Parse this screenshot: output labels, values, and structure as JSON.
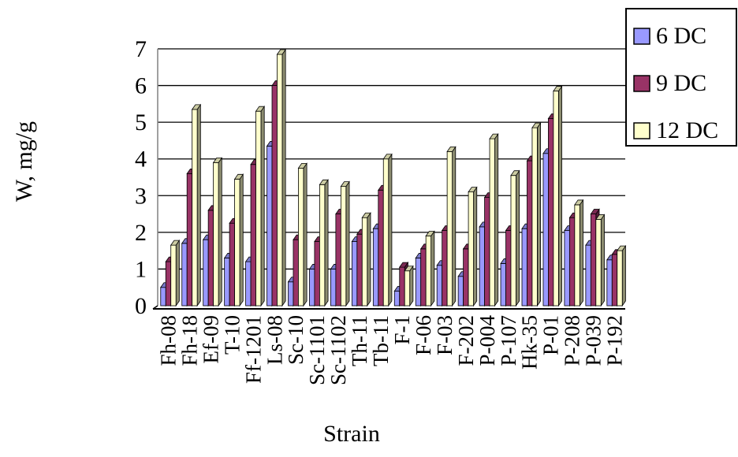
{
  "chart_data": {
    "type": "bar",
    "title": "",
    "xlabel": "Strain",
    "ylabel": "W, mg/g",
    "ylim": [
      0,
      7
    ],
    "yticks": [
      0,
      1,
      2,
      3,
      4,
      5,
      6,
      7
    ],
    "grid": true,
    "legend_position": "top-right",
    "categories": [
      "Fh-08",
      "Fh-18",
      "Ef-09",
      "T-10",
      "Ff-1201",
      "Ls-08",
      "Sc-10",
      "Sc-1101",
      "Sc-1102",
      "Th-11",
      "Tb-11",
      "F-1",
      "F-06",
      "F-03",
      "F-202",
      "P-004",
      "P-107",
      "Hk-35",
      "P-01",
      "P-208",
      "P-039",
      "P-192"
    ],
    "series": [
      {
        "name": "6 DC",
        "color": "#9999ff",
        "values": [
          0.5,
          1.7,
          1.8,
          1.3,
          1.2,
          4.35,
          0.65,
          1.0,
          1.0,
          1.75,
          2.1,
          0.4,
          1.3,
          1.1,
          0.8,
          2.15,
          1.15,
          2.1,
          4.15,
          2.05,
          1.65,
          1.25
        ]
      },
      {
        "name": "9 DC",
        "color": "#993366",
        "values": [
          1.2,
          3.6,
          2.6,
          2.25,
          3.85,
          6.0,
          1.8,
          1.75,
          2.5,
          1.95,
          3.15,
          1.05,
          1.55,
          2.05,
          1.55,
          2.95,
          2.05,
          3.95,
          5.1,
          2.4,
          2.5,
          1.4
        ]
      },
      {
        "name": "12 DC",
        "color": "#ffffcc",
        "values": [
          1.65,
          5.35,
          3.9,
          3.45,
          5.3,
          6.85,
          3.75,
          3.3,
          3.25,
          2.4,
          4.0,
          0.95,
          1.9,
          4.2,
          3.1,
          4.55,
          3.55,
          4.85,
          5.85,
          2.75,
          2.35,
          1.5
        ]
      }
    ]
  }
}
